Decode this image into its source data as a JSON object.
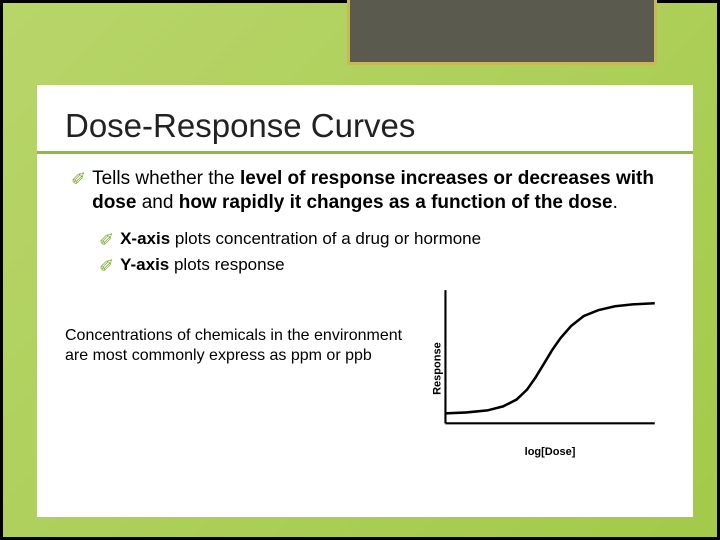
{
  "title": "Dose-Response Curves",
  "main_bullet": {
    "prefix": "Tells ",
    "mid1": "whether the ",
    "b1": "level of response increases or decreases with dose",
    "mid2": " and ",
    "b2": "how rapidly it changes as a function of the dose",
    "suffix": "."
  },
  "sub_bullets": {
    "x": {
      "bold": "X-axis",
      "rest": " plots concentration of a drug or hormone"
    },
    "y": {
      "bold": "Y-axis",
      "rest": " plots response"
    }
  },
  "note": "Concentrations of chemicals in the environment are most commonly express as ppm or ppb",
  "chart": {
    "type": "line",
    "y_label": "Response",
    "x_label": "log[Dose]",
    "curve_color": "#000000",
    "axis_color": "#000000",
    "line_width": 2.4,
    "xlim": [
      0,
      200
    ],
    "ylim": [
      0,
      130
    ],
    "points": [
      [
        0,
        120
      ],
      [
        20,
        119
      ],
      [
        40,
        117
      ],
      [
        55,
        113
      ],
      [
        68,
        106
      ],
      [
        78,
        96
      ],
      [
        86,
        84
      ],
      [
        94,
        70
      ],
      [
        102,
        56
      ],
      [
        110,
        44
      ],
      [
        120,
        32
      ],
      [
        132,
        22
      ],
      [
        146,
        16
      ],
      [
        162,
        12
      ],
      [
        180,
        10
      ],
      [
        200,
        9
      ]
    ]
  },
  "colors": {
    "accent_green": "#8fbb3a",
    "tilde_green": "#7aa82f",
    "slide_bg_start": "#b8d56a",
    "slide_bg_end": "#a3ca4a",
    "header_fill": "#5a5a4f",
    "header_border": "#c9b85a",
    "content_bg": "#ffffff"
  }
}
